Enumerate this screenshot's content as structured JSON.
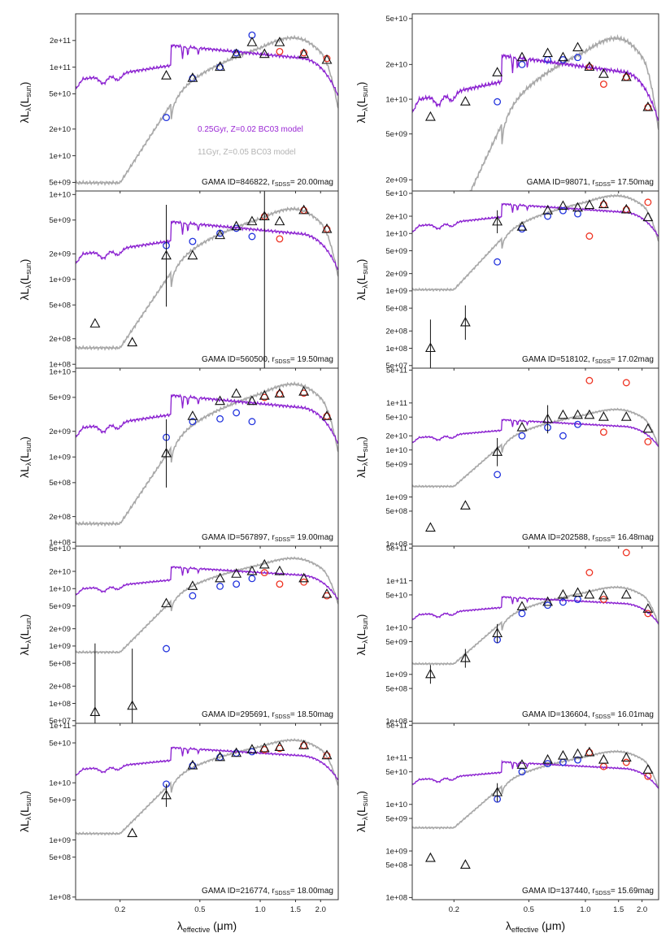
{
  "figure": {
    "x_axis_label": "λ",
    "x_axis_sub": "effective",
    "x_axis_unit": "(μm)",
    "y_axis_label_main": "λL",
    "y_axis_sub_lambda": "λ",
    "y_axis_paren": "(L",
    "y_axis_sub_sun": "sun",
    "y_axis_close": ")",
    "annotation_template": {
      "prefix": "GAMA ID=",
      "r": ", r",
      "rsub": "SDSS",
      "eq": "= "
    },
    "legend": [
      {
        "label": "0.25Gyr, Z=0.02 BC03 model",
        "color": "#9a27d4"
      },
      {
        "label": "11Gyr, Z=0.05 BC03 model",
        "color": "#b3b3b3"
      }
    ],
    "colors": {
      "young_model": "#8a1fd0",
      "old_model": "#a8a8a8",
      "triangle": "#111111",
      "blue_circle": "#2233dd",
      "red_circle": "#ee3322"
    }
  },
  "chart_data": [
    {
      "type": "scatter",
      "panel": "left-1",
      "gama_id": "846822",
      "r_mag": "20.00mag",
      "ylim": [
        4000000000.0,
        400000000000.0
      ],
      "yticks": [
        "5e+09",
        "1e+10",
        "2e+10",
        "5e+10",
        "1e+11",
        "2e+11"
      ],
      "model_young_scale": 140000000000.0,
      "model_old_scale": 165000000000.0,
      "triangles": [
        [
          0.34,
          80000000000.0,
          0
        ],
        [
          0.46,
          75000000000.0,
          0
        ],
        [
          0.63,
          100000000000.0,
          0
        ],
        [
          0.76,
          140000000000.0,
          0
        ],
        [
          0.91,
          190000000000.0,
          0
        ],
        [
          1.05,
          140000000000.0,
          0
        ],
        [
          1.25,
          190000000000.0,
          0
        ],
        [
          1.65,
          140000000000.0,
          0
        ],
        [
          2.15,
          120000000000.0,
          0
        ]
      ],
      "blue": [
        [
          0.34,
          27000000000.0
        ],
        [
          0.46,
          75000000000.0
        ],
        [
          0.63,
          100000000000.0
        ],
        [
          0.76,
          145000000000.0
        ],
        [
          0.91,
          230000000000.0
        ]
      ],
      "red": [
        [
          1.25,
          150000000000.0
        ],
        [
          1.65,
          145000000000.0
        ],
        [
          2.15,
          125000000000.0
        ]
      ]
    },
    {
      "type": "scatter",
      "panel": "right-1",
      "gama_id": "98071",
      "r_mag": "17.50mag",
      "ylim": [
        1600000000.0,
        55000000000.0
      ],
      "yticks": [
        "2e+09",
        "5e+09",
        "1e+10",
        "2e+10",
        "5e+10"
      ],
      "model_young_scale": 19000000000.0,
      "model_old_scale": 26000000000.0,
      "triangles": [
        [
          0.15,
          7000000000.0,
          0
        ],
        [
          0.23,
          9500000000.0,
          0
        ],
        [
          0.34,
          17000000000.0,
          0
        ],
        [
          0.46,
          23000000000.0,
          0
        ],
        [
          0.63,
          25000000000.0,
          0
        ],
        [
          0.76,
          23000000000.0,
          0
        ],
        [
          0.91,
          28000000000.0,
          0
        ],
        [
          1.05,
          19000000000.0,
          0
        ],
        [
          1.25,
          16500000000.0,
          0
        ],
        [
          1.65,
          15500000000.0,
          0
        ],
        [
          2.15,
          8500000000.0,
          0
        ]
      ],
      "blue": [
        [
          0.34,
          9500000000.0
        ],
        [
          0.46,
          20000000000.0
        ],
        [
          0.63,
          22000000000.0
        ],
        [
          0.76,
          22000000000.0
        ],
        [
          0.91,
          23000000000.0
        ]
      ],
      "red": [
        [
          1.05,
          19000000000.0
        ],
        [
          1.25,
          13500000000.0
        ],
        [
          1.65,
          15500000000.0
        ],
        [
          2.15,
          8500000000.0
        ]
      ]
    },
    {
      "type": "scatter",
      "panel": "left-2",
      "gama_id": "560500",
      "r_mag": "19.50mag",
      "ylim": [
        90000000.0,
        11000000000.0
      ],
      "yticks": [
        "1e+08",
        "2e+08",
        "5e+08",
        "1e+09",
        "2e+09",
        "5e+09",
        "1e+10"
      ],
      "model_young_scale": 3800000000.0,
      "model_old_scale": 5200000000.0,
      "triangles": [
        [
          0.15,
          300000000.0,
          0
        ],
        [
          0.23,
          180000000.0,
          0
        ],
        [
          0.34,
          1900000000.0,
          0.6
        ],
        [
          0.46,
          1900000000.0,
          0
        ],
        [
          0.63,
          3300000000.0,
          0
        ],
        [
          0.76,
          4200000000.0,
          0
        ],
        [
          0.91,
          4800000000.0,
          0
        ],
        [
          1.05,
          5500000000.0,
          2.2
        ],
        [
          1.25,
          4800000000.0,
          0
        ],
        [
          1.65,
          6500000000.0,
          0
        ],
        [
          2.15,
          3900000000.0,
          0
        ]
      ],
      "blue": [
        [
          0.34,
          2500000000.0
        ],
        [
          0.46,
          2800000000.0
        ],
        [
          0.63,
          3500000000.0
        ],
        [
          0.76,
          4000000000.0
        ],
        [
          0.91,
          3200000000.0
        ]
      ],
      "red": [
        [
          1.05,
          5500000000.0
        ],
        [
          1.25,
          3000000000.0
        ],
        [
          1.65,
          6500000000.0
        ],
        [
          2.15,
          3900000000.0
        ]
      ]
    },
    {
      "type": "scatter",
      "panel": "right-2",
      "gama_id": "518102",
      "r_mag": "17.02mag",
      "ylim": [
        45000000.0,
        55000000000.0
      ],
      "yticks": [
        "5e+07",
        "1e+08",
        "2e+08",
        "5e+08",
        "1e+09",
        "2e+09",
        "5e+09",
        "1e+10",
        "2e+10",
        "5e+10"
      ],
      "model_young_scale": 26000000000.0,
      "model_old_scale": 35000000000.0,
      "triangles": [
        [
          0.15,
          100000000.0,
          0.5
        ],
        [
          0.23,
          280000000.0,
          0.3
        ],
        [
          0.34,
          16000000000.0,
          0.2
        ],
        [
          0.46,
          13000000000.0,
          0
        ],
        [
          0.63,
          25000000000.0,
          0
        ],
        [
          0.76,
          30000000000.0,
          0
        ],
        [
          0.91,
          28000000000.0,
          0
        ],
        [
          1.05,
          31000000000.0,
          0
        ],
        [
          1.25,
          32000000000.0,
          0
        ],
        [
          1.65,
          26000000000.0,
          0
        ],
        [
          2.15,
          19000000000.0,
          0
        ]
      ],
      "blue": [
        [
          0.34,
          3200000000.0
        ],
        [
          0.46,
          12000000000.0
        ],
        [
          0.63,
          20000000000.0
        ],
        [
          0.76,
          25000000000.0
        ],
        [
          0.91,
          22000000000.0
        ]
      ],
      "red": [
        [
          1.05,
          9000000000.0
        ],
        [
          1.25,
          32000000000.0
        ],
        [
          1.65,
          26000000000.0
        ],
        [
          2.15,
          35000000000.0
        ]
      ]
    },
    {
      "type": "scatter",
      "panel": "left-3",
      "gama_id": "567897",
      "r_mag": "19.00mag",
      "ylim": [
        90000000.0,
        11000000000.0
      ],
      "yticks": [
        "1e+08",
        "2e+08",
        "5e+08",
        "1e+09",
        "2e+09",
        "5e+09",
        "1e+10"
      ],
      "model_young_scale": 4200000000.0,
      "model_old_scale": 5500000000.0,
      "triangles": [
        [
          0.34,
          1100000000.0,
          0.4
        ],
        [
          0.46,
          3000000000.0,
          0
        ],
        [
          0.63,
          4500000000.0,
          0
        ],
        [
          0.76,
          5500000000.0,
          0
        ],
        [
          0.91,
          4500000000.0,
          0
        ],
        [
          1.05,
          5200000000.0,
          0
        ],
        [
          1.25,
          5500000000.0,
          0
        ],
        [
          1.65,
          5800000000.0,
          0
        ],
        [
          2.15,
          3000000000.0,
          0
        ]
      ],
      "blue": [
        [
          0.34,
          1700000000.0
        ],
        [
          0.46,
          2600000000.0
        ],
        [
          0.63,
          2800000000.0
        ],
        [
          0.76,
          3300000000.0
        ],
        [
          0.91,
          2600000000.0
        ]
      ],
      "red": [
        [
          1.05,
          5000000000.0
        ],
        [
          1.25,
          5500000000.0
        ],
        [
          1.65,
          5600000000.0
        ],
        [
          2.15,
          3000000000.0
        ]
      ]
    },
    {
      "type": "scatter",
      "panel": "right-3",
      "gama_id": "202588",
      "r_mag": "16.48mag",
      "ylim": [
        90000000.0,
        550000000000.0
      ],
      "yticks": [
        "1e+08",
        "5e+08",
        "1e+09",
        "5e+09",
        "1e+10",
        "2e+10",
        "5e+10",
        "1e+11",
        "5e+11"
      ],
      "model_young_scale": 35000000000.0,
      "model_old_scale": 56000000000.0,
      "triangles": [
        [
          0.15,
          220000000.0,
          0
        ],
        [
          0.23,
          650000000.0,
          0
        ],
        [
          0.34,
          9000000000.0,
          0.3
        ],
        [
          0.46,
          30000000000.0,
          0
        ],
        [
          0.63,
          45000000000.0,
          0.3
        ],
        [
          0.76,
          55000000000.0,
          0
        ],
        [
          0.91,
          55000000000.0,
          0
        ],
        [
          1.05,
          55000000000.0,
          0
        ],
        [
          1.25,
          50000000000.0,
          0
        ],
        [
          1.65,
          50000000000.0,
          0
        ],
        [
          2.15,
          28000000000.0,
          0
        ]
      ],
      "blue": [
        [
          0.34,
          3000000000.0
        ],
        [
          0.46,
          20000000000.0
        ],
        [
          0.63,
          30000000000.0
        ],
        [
          0.76,
          20000000000.0
        ],
        [
          0.91,
          35000000000.0
        ]
      ],
      "red": [
        [
          1.05,
          300000000000.0
        ],
        [
          1.25,
          24000000000.0
        ],
        [
          1.65,
          270000000000.0
        ],
        [
          2.15,
          15000000000.0
        ]
      ]
    },
    {
      "type": "scatter",
      "panel": "left-4",
      "gama_id": "295691",
      "r_mag": "18.50mag",
      "ylim": [
        45000000.0,
        55000000000.0
      ],
      "yticks": [
        "5e+07",
        "1e+08",
        "2e+08",
        "5e+08",
        "1e+09",
        "2e+09",
        "5e+09",
        "1e+10",
        "2e+10",
        "5e+10"
      ],
      "model_young_scale": 19000000000.0,
      "model_old_scale": 26000000000.0,
      "triangles": [
        [
          0.15,
          70000000.0,
          1.2
        ],
        [
          0.23,
          90000000.0,
          1.0
        ],
        [
          0.34,
          5500000000.0,
          0
        ],
        [
          0.46,
          11000000000.0,
          0
        ],
        [
          0.63,
          15000000000.0,
          0
        ],
        [
          0.76,
          18000000000.0,
          0
        ],
        [
          0.91,
          20000000000.0,
          0
        ],
        [
          1.05,
          26000000000.0,
          0
        ],
        [
          1.25,
          20000000000.0,
          0
        ],
        [
          1.65,
          15000000000.0,
          0
        ],
        [
          2.15,
          8000000000.0,
          0
        ]
      ],
      "blue": [
        [
          0.34,
          900000000.0
        ],
        [
          0.46,
          7500000000.0
        ],
        [
          0.63,
          11000000000.0
        ],
        [
          0.76,
          12000000000.0
        ],
        [
          0.91,
          15000000000.0
        ]
      ],
      "red": [
        [
          1.05,
          19000000000.0
        ],
        [
          1.25,
          12000000000.0
        ],
        [
          1.65,
          13000000000.0
        ],
        [
          2.15,
          7500000000.0
        ]
      ]
    },
    {
      "type": "scatter",
      "panel": "right-4",
      "gama_id": "136604",
      "r_mag": "16.01mag",
      "ylim": [
        90000000.0,
        550000000000.0
      ],
      "yticks": [
        "1e+08",
        "5e+08",
        "1e+09",
        "5e+09",
        "1e+10",
        "5e+10",
        "1e+11",
        "5e+11"
      ],
      "model_young_scale": 36000000000.0,
      "model_old_scale": 56000000000.0,
      "triangles": [
        [
          0.15,
          1000000000.0,
          0.2
        ],
        [
          0.23,
          2200000000.0,
          0.2
        ],
        [
          0.34,
          7500000000.0,
          0.2
        ],
        [
          0.46,
          28000000000.0,
          0
        ],
        [
          0.63,
          35000000000.0,
          0
        ],
        [
          0.76,
          50000000000.0,
          0
        ],
        [
          0.91,
          55000000000.0,
          0
        ],
        [
          1.05,
          50000000000.0,
          0
        ],
        [
          1.25,
          48000000000.0,
          0
        ],
        [
          1.65,
          50000000000.0,
          0
        ],
        [
          2.15,
          25000000000.0,
          0
        ]
      ],
      "blue": [
        [
          0.34,
          5500000000.0
        ],
        [
          0.46,
          20000000000.0
        ],
        [
          0.63,
          30000000000.0
        ],
        [
          0.76,
          35000000000.0
        ],
        [
          0.91,
          40000000000.0
        ]
      ],
      "red": [
        [
          1.05,
          150000000000.0
        ],
        [
          1.25,
          40000000000.0
        ],
        [
          1.65,
          400000000000.0
        ],
        [
          2.15,
          20000000000.0
        ]
      ]
    },
    {
      "type": "scatter",
      "panel": "left-5",
      "gama_id": "216774",
      "r_mag": "18.00mag",
      "ylim": [
        90000000.0,
        110000000000.0
      ],
      "yticks": [
        "1e+08",
        "5e+08",
        "1e+09",
        "5e+09",
        "1e+10",
        "5e+10",
        "1e+11"
      ],
      "model_young_scale": 33000000000.0,
      "model_old_scale": 43000000000.0,
      "triangles": [
        [
          0.23,
          1300000000.0,
          0
        ],
        [
          0.34,
          6000000000.0,
          0.2
        ],
        [
          0.46,
          20000000000.0,
          0
        ],
        [
          0.63,
          28000000000.0,
          0
        ],
        [
          0.76,
          33000000000.0,
          0
        ],
        [
          0.91,
          38000000000.0,
          0
        ],
        [
          1.05,
          40000000000.0,
          0
        ],
        [
          1.25,
          42000000000.0,
          0
        ],
        [
          1.65,
          45000000000.0,
          0
        ],
        [
          2.15,
          30000000000.0,
          0
        ]
      ],
      "blue": [
        [
          0.34,
          9500000000.0
        ],
        [
          0.46,
          20000000000.0
        ],
        [
          0.63,
          28000000000.0
        ],
        [
          0.76,
          33000000000.0
        ],
        [
          0.91,
          35000000000.0
        ]
      ],
      "red": [
        [
          1.05,
          38000000000.0
        ],
        [
          1.25,
          40000000000.0
        ],
        [
          1.65,
          45000000000.0
        ],
        [
          2.15,
          30000000000.0
        ]
      ]
    },
    {
      "type": "scatter",
      "panel": "right-5",
      "gama_id": "137440",
      "r_mag": "15.69mag",
      "ylim": [
        90000000.0,
        550000000000.0
      ],
      "yticks": [
        "1e+08",
        "5e+08",
        "1e+09",
        "5e+09",
        "1e+10",
        "5e+10",
        "1e+11",
        "5e+11"
      ],
      "model_young_scale": 65000000000.0,
      "model_old_scale": 105000000000.0,
      "triangles": [
        [
          0.15,
          700000000.0,
          0
        ],
        [
          0.23,
          500000000.0,
          0
        ],
        [
          0.34,
          18000000000.0,
          0.2
        ],
        [
          0.46,
          70000000000.0,
          0
        ],
        [
          0.63,
          90000000000.0,
          0
        ],
        [
          0.76,
          110000000000.0,
          0
        ],
        [
          0.91,
          120000000000.0,
          0
        ],
        [
          1.05,
          130000000000.0,
          0
        ],
        [
          1.25,
          90000000000.0,
          0
        ],
        [
          1.65,
          100000000000.0,
          0
        ],
        [
          2.15,
          55000000000.0,
          0
        ]
      ],
      "blue": [
        [
          0.34,
          13000000000.0
        ],
        [
          0.46,
          50000000000.0
        ],
        [
          0.63,
          75000000000.0
        ],
        [
          0.76,
          80000000000.0
        ],
        [
          0.91,
          90000000000.0
        ]
      ],
      "red": [
        [
          1.05,
          130000000000.0
        ],
        [
          1.25,
          65000000000.0
        ],
        [
          1.65,
          80000000000.0
        ],
        [
          2.15,
          40000000000.0
        ]
      ]
    }
  ],
  "x_axis": {
    "xlim": [
      0.12,
      2.45
    ],
    "ticks": [
      "0.2",
      "0.5",
      "1.0",
      "1.5",
      "2.0"
    ]
  }
}
